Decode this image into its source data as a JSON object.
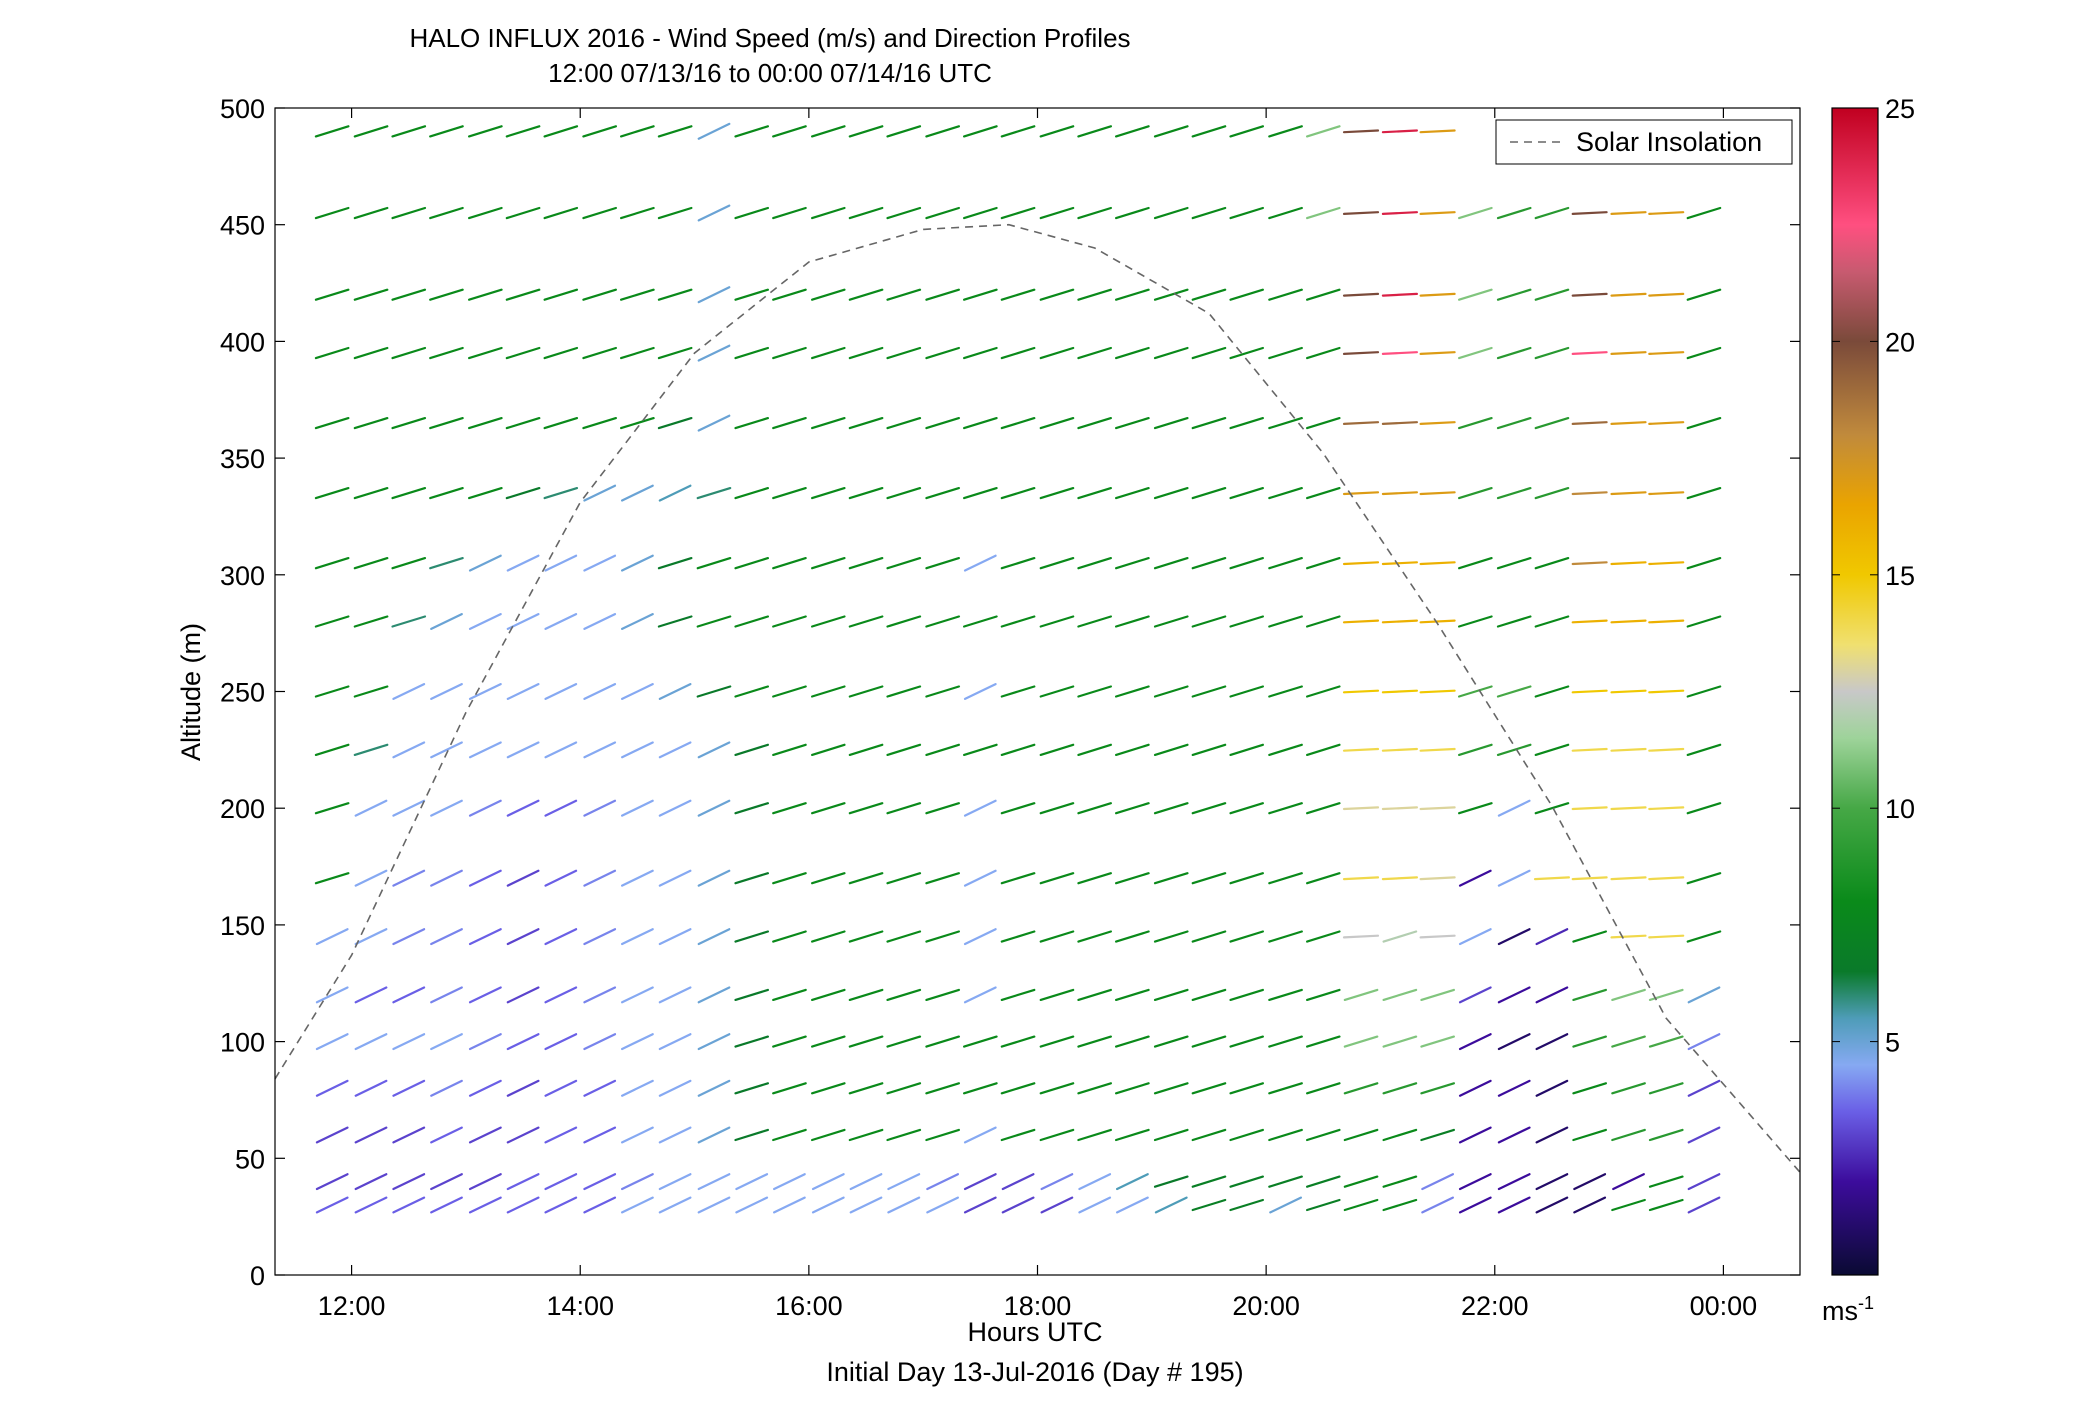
{
  "chart_data": {
    "type": "scatter",
    "title": "HALO INFLUX 2016 - Wind Speed (m/s) and Direction Profiles",
    "subtitle": "12:00 07/13/16 to 00:00 07/14/16  UTC",
    "xlabel": "Hours UTC",
    "xlabel2": "Initial Day 13-Jul-2016 (Day # 195)",
    "ylabel": "Altitude (m)",
    "xlim": [
      11.33,
      24.67
    ],
    "ylim": [
      0,
      500
    ],
    "x_ticks": [
      12,
      14,
      16,
      18,
      20,
      22,
      24
    ],
    "x_tick_labels": [
      "12:00",
      "14:00",
      "16:00",
      "18:00",
      "20:00",
      "22:00",
      "00:00"
    ],
    "y_ticks": [
      0,
      50,
      100,
      150,
      200,
      250,
      300,
      350,
      400,
      450,
      500
    ],
    "y_tick_labels": [
      "0",
      "50",
      "100",
      "150",
      "200",
      "250",
      "300",
      "350",
      "400",
      "450",
      "500"
    ],
    "grid": false,
    "legend": {
      "position": "top-right",
      "entries": [
        "Solar Insolation"
      ]
    },
    "colorbar": {
      "range": [
        0,
        25
      ],
      "ticks": [
        5,
        10,
        15,
        20,
        25
      ],
      "tick_labels": [
        "5",
        "10",
        "15",
        "20",
        "25"
      ],
      "unit_base": "ms",
      "unit_exp": "-1"
    },
    "colormap": [
      [
        0,
        "#0a0a33"
      ],
      [
        2,
        "#3c0c9c"
      ],
      [
        3.5,
        "#6a5fe6"
      ],
      [
        4.5,
        "#86a9f2"
      ],
      [
        5.5,
        "#4e9cb8"
      ],
      [
        6.5,
        "#0a7a2a"
      ],
      [
        8,
        "#0a8a1a"
      ],
      [
        10,
        "#46a846"
      ],
      [
        11.5,
        "#9ed39a"
      ],
      [
        12.5,
        "#c8c8c8"
      ],
      [
        13.5,
        "#f0e070"
      ],
      [
        15,
        "#f0c800"
      ],
      [
        16.5,
        "#eaa400"
      ],
      [
        18,
        "#c08a3c"
      ],
      [
        20,
        "#7a4a3a"
      ],
      [
        21.5,
        "#c85a70"
      ],
      [
        22.5,
        "#ff4f80"
      ],
      [
        25,
        "#c00020"
      ]
    ],
    "solar_insolation": {
      "name": "Solar Insolation",
      "x": [
        11.33,
        12,
        13,
        14,
        15,
        16,
        17,
        17.75,
        18.5,
        19.5,
        20.5,
        21.5,
        22.5,
        23.5,
        24.67
      ],
      "y": [
        84,
        137,
        241,
        331,
        395,
        434,
        448,
        450,
        440,
        412,
        352,
        279,
        201,
        110,
        44
      ]
    },
    "wind_barbs": {
      "description_note": "",
      "times": [
        11.83,
        12.17,
        12.5,
        12.83,
        13.17,
        13.5,
        13.83,
        14.17,
        14.5,
        14.83,
        15.17,
        15.5,
        15.83,
        16.17,
        16.5,
        16.83,
        17.17,
        17.5,
        17.83,
        18.17,
        18.5,
        18.83,
        19.17,
        19.5,
        19.83,
        20.17,
        20.5,
        20.83,
        21.17,
        21.5,
        21.83,
        22.17,
        22.5,
        22.83,
        23.17,
        23.5,
        23.83
      ],
      "altitudes": [
        30,
        40,
        60,
        80,
        100,
        120,
        145,
        170,
        200,
        225,
        250,
        280,
        305,
        335,
        365,
        395,
        420,
        455,
        490
      ],
      "speed_rows": [
        [
          3.5,
          3.5,
          3.5,
          3.5,
          3.5,
          3.5,
          3.5,
          3.5,
          4.5,
          4.5,
          4.5,
          4.5,
          4.5,
          4.5,
          4.5,
          4.5,
          4.5,
          3,
          3,
          3,
          4.5,
          4.5,
          5.5,
          7,
          7,
          5,
          7,
          8,
          8,
          4,
          2,
          2,
          1,
          1,
          8,
          8,
          3
        ],
        [
          3,
          3,
          3,
          3,
          3,
          3.5,
          3.5,
          3.5,
          4,
          4.5,
          4.5,
          4.5,
          4.5,
          4.5,
          4.5,
          4.5,
          4,
          3,
          3,
          4,
          4.5,
          5.5,
          6.5,
          7,
          7,
          7,
          7,
          8,
          8,
          4,
          2,
          2,
          1,
          1,
          2,
          8,
          3
        ],
        [
          3,
          3,
          3,
          3.5,
          3,
          3,
          3.5,
          3.5,
          4.5,
          4.5,
          5,
          6.5,
          8,
          8,
          8,
          8,
          8,
          4.5,
          8,
          8,
          8,
          8,
          8,
          8,
          8,
          8,
          8,
          8,
          8,
          7,
          2,
          2,
          1,
          8,
          9,
          9,
          3
        ],
        [
          3.5,
          3.5,
          3.5,
          4,
          3.5,
          3,
          3.5,
          3.5,
          4.5,
          4.5,
          5,
          6.5,
          8,
          8,
          8,
          8,
          8,
          8,
          8,
          8,
          8,
          8,
          8,
          8,
          8,
          8,
          8,
          9,
          9,
          9,
          2,
          2,
          1,
          8,
          9,
          9,
          3
        ],
        [
          4.5,
          4.5,
          4.5,
          4.5,
          4,
          3.5,
          3.5,
          4,
          4.5,
          4.5,
          5,
          6.5,
          8,
          8,
          8,
          8,
          8,
          8,
          8,
          8,
          8,
          8,
          8,
          8,
          8,
          8,
          8,
          11,
          11,
          11,
          2,
          1,
          1,
          9,
          10,
          10,
          4
        ],
        [
          4.5,
          3.5,
          3.5,
          4,
          3.5,
          3,
          3.5,
          4,
          4.5,
          4.5,
          5,
          6.5,
          8,
          8,
          8,
          8,
          8,
          4.5,
          8,
          8,
          8,
          8,
          8,
          8,
          8,
          8,
          8,
          11,
          11,
          11,
          3,
          2,
          2,
          9,
          11,
          11,
          5
        ],
        [
          4.5,
          4.5,
          4,
          4,
          3.5,
          3,
          3.5,
          4,
          4.5,
          4.5,
          5,
          6.5,
          8,
          8,
          8,
          8,
          8,
          4.5,
          8,
          8,
          8,
          8,
          8,
          8,
          8,
          8,
          8,
          12.5,
          12,
          12.5,
          4.5,
          1,
          2.5,
          8,
          14,
          14,
          8
        ],
        [
          8,
          4.5,
          4,
          4,
          3.5,
          3,
          3.5,
          4,
          4.5,
          4.5,
          5,
          6.5,
          8,
          8,
          8,
          8,
          8,
          4.5,
          8,
          8,
          8,
          8,
          8,
          8,
          8,
          8,
          8,
          14,
          14,
          13,
          2,
          4.5,
          14,
          14,
          14,
          14,
          8
        ],
        [
          8,
          4.5,
          4.5,
          4.5,
          4,
          3.5,
          3.5,
          4,
          4.5,
          4.5,
          5,
          6.5,
          8,
          8,
          8,
          8,
          8,
          4.5,
          8,
          8,
          8,
          8,
          8,
          8,
          8,
          8,
          8,
          13,
          13,
          13,
          8,
          4.5,
          8,
          14,
          14,
          14,
          8
        ],
        [
          8,
          6,
          4.5,
          4.5,
          4.5,
          4.5,
          4.5,
          4.5,
          4.5,
          4.5,
          5,
          6.5,
          8,
          8,
          8,
          8,
          8,
          8,
          8,
          8,
          8,
          8,
          8,
          8,
          8,
          8,
          8,
          14,
          14,
          14,
          9,
          9,
          8,
          14,
          14,
          14,
          8
        ],
        [
          8,
          8,
          4.5,
          4.5,
          4.5,
          4.5,
          4.5,
          4.5,
          4.5,
          5,
          6.5,
          8,
          8,
          8,
          8,
          8,
          8,
          4.5,
          8,
          8,
          8,
          8,
          8,
          8,
          8,
          8,
          8,
          15,
          15,
          15,
          10,
          10,
          8,
          15,
          15,
          15,
          8
        ],
        [
          8,
          8,
          6,
          5,
          4.5,
          4.5,
          4.5,
          4.5,
          5,
          6.5,
          8,
          8,
          8,
          8,
          8,
          8,
          8,
          8,
          8,
          8,
          8,
          8,
          8,
          8,
          8,
          8,
          8,
          16,
          16,
          16,
          8,
          8,
          8,
          16,
          16,
          16,
          8
        ],
        [
          8,
          8,
          8,
          6,
          5,
          4.5,
          4.5,
          4.5,
          5,
          6.5,
          8,
          8,
          8,
          8,
          8,
          8,
          8,
          4.5,
          8,
          8,
          8,
          8,
          8,
          8,
          8,
          8,
          8,
          16,
          16,
          16,
          8,
          8,
          8,
          18,
          16,
          16,
          8
        ],
        [
          8,
          8,
          8,
          8,
          8,
          6.5,
          6,
          5,
          5,
          5.5,
          6,
          8,
          8,
          8,
          8,
          8,
          8,
          8,
          8,
          8,
          8,
          8,
          8,
          8,
          8,
          8,
          8,
          17,
          17,
          17,
          9,
          9,
          9,
          18,
          17,
          17,
          8
        ],
        [
          8,
          8,
          8,
          8,
          8,
          8,
          8,
          8,
          8,
          6.5,
          5,
          8,
          8,
          8,
          8,
          8,
          8,
          8,
          8,
          8,
          8,
          8,
          8,
          8,
          8,
          8,
          8,
          19,
          19,
          17,
          9,
          9,
          9,
          19,
          17,
          17,
          8
        ],
        [
          8,
          8,
          8,
          8,
          8,
          8,
          8,
          8,
          8,
          8,
          5,
          8,
          8,
          8,
          8,
          8,
          8,
          8,
          8,
          8,
          8,
          8,
          8,
          8,
          8,
          8,
          8,
          20,
          22.5,
          17,
          11,
          9,
          9,
          22.5,
          17,
          17,
          8
        ],
        [
          8,
          8,
          8,
          8,
          8,
          8,
          8,
          8,
          8,
          8,
          5,
          8,
          8,
          8,
          8,
          8,
          8,
          8,
          8,
          8,
          8,
          8,
          8,
          8,
          8,
          8,
          8,
          20,
          24,
          17,
          11,
          9,
          9,
          20,
          17,
          17,
          8
        ],
        [
          8,
          8,
          8,
          8,
          8,
          8,
          8,
          8,
          8,
          8,
          5,
          8,
          8,
          8,
          8,
          8,
          8,
          8,
          8,
          8,
          8,
          8,
          8,
          8,
          8,
          8,
          11,
          20,
          24,
          17,
          11,
          9,
          9,
          20,
          17,
          17,
          8
        ],
        [
          8,
          8,
          8,
          8,
          8,
          8,
          8,
          8,
          8,
          8,
          5,
          8,
          8,
          8,
          8,
          8,
          8,
          8,
          8,
          8,
          8,
          8,
          8,
          8,
          8,
          8,
          11,
          20,
          24,
          17,
          0,
          0,
          0,
          0,
          0,
          0,
          0
        ]
      ]
    }
  }
}
